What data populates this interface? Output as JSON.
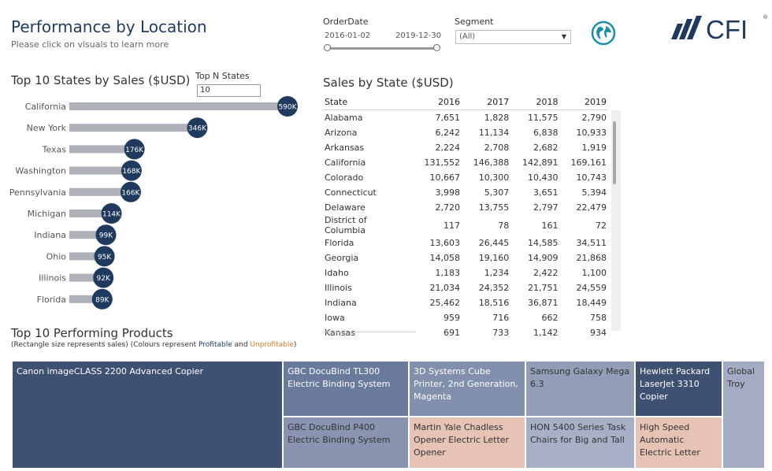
{
  "header": {
    "title": "Performance by Location",
    "subtitle": "Please click on visuals to learn more",
    "logo_text": "CFI"
  },
  "filters": {
    "order_date": {
      "label": "OrderDate",
      "start": "2016-01-02",
      "end": "2019-12-30"
    },
    "segment": {
      "label": "Segment",
      "value": "(All)"
    },
    "top_n": {
      "label": "Top N States",
      "value": "10"
    }
  },
  "colors": {
    "primary": "#1f3a5f",
    "bar_gray": "#aeb1b8",
    "profitable_light": "#a4adc1",
    "unprofitable": "#e6c3b5",
    "accent_orange": "#e07b28"
  },
  "chart_data": {
    "type": "bar",
    "title": "Top 10 States by Sales ($USD)",
    "orientation": "horizontal",
    "categories": [
      "California",
      "New York",
      "Texas",
      "Washington",
      "Pennsylvania",
      "Michigan",
      "Indiana",
      "Ohio",
      "Illinois",
      "Florida"
    ],
    "values": [
      590000,
      346000,
      176000,
      168000,
      166000,
      114000,
      99000,
      95000,
      92000,
      89000
    ],
    "labels": [
      "590K",
      "346K",
      "176K",
      "168K",
      "166K",
      "114K",
      "99K",
      "95K",
      "92K",
      "89K"
    ]
  },
  "sales_table": {
    "title": "Sales by State ($USD)",
    "columns": [
      "State",
      "2016",
      "2017",
      "2018",
      "2019"
    ],
    "rows": [
      [
        "Alabama",
        "7,651",
        "1,828",
        "11,575",
        "2,790"
      ],
      [
        "Arizona",
        "6,242",
        "11,134",
        "6,838",
        "10,933"
      ],
      [
        "Arkansas",
        "2,224",
        "2,708",
        "2,682",
        "1,919"
      ],
      [
        "California",
        "131,552",
        "146,388",
        "142,891",
        "169,161"
      ],
      [
        "Colorado",
        "10,667",
        "10,300",
        "10,430",
        "10,743"
      ],
      [
        "Connecticut",
        "3,998",
        "5,307",
        "3,651",
        "5,394"
      ],
      [
        "Delaware",
        "2,720",
        "13,755",
        "2,797",
        "22,479"
      ],
      [
        "District of Columbia",
        "117",
        "78",
        "161",
        "72"
      ],
      [
        "Florida",
        "13,603",
        "26,445",
        "14,585",
        "34,511"
      ],
      [
        "Georgia",
        "14,058",
        "19,160",
        "14,909",
        "21,868"
      ],
      [
        "Idaho",
        "1,183",
        "1,234",
        "2,422",
        "1,100"
      ],
      [
        "Illinois",
        "21,034",
        "24,352",
        "21,751",
        "24,559"
      ],
      [
        "Indiana",
        "25,462",
        "18,516",
        "36,871",
        "18,449"
      ],
      [
        "Iowa",
        "959",
        "716",
        "662",
        "758"
      ],
      [
        "Kansas",
        "691",
        "733",
        "1,142",
        "934"
      ]
    ]
  },
  "treemap": {
    "title": "Top 10 Performing Products",
    "caption_prefix": "(Rectangle size represents sales) (Colours represent ",
    "caption_profitable": "Profitable",
    "caption_and": " and ",
    "caption_unprofitable": "Unprofitable",
    "caption_suffix": ")",
    "tiles": [
      {
        "name": "Canon imageCLASS 2200 Advanced Copier",
        "color": "#3f5173",
        "light": false
      },
      {
        "name": "GBC DocuBind TL300 Electric Binding System",
        "color": "#6a7a9c",
        "light": false
      },
      {
        "name": "GBC DocuBind P400 Electric Binding System",
        "color": "#8894b0",
        "light": true
      },
      {
        "name": "3D Systems Cube Printer, 2nd Generation, Magenta",
        "color": "#8090ad",
        "light": false
      },
      {
        "name": "Martin Yale Chadless Opener Electric Letter Opener",
        "color": "#e6c3b5",
        "light": true
      },
      {
        "name": "Samsung Galaxy Mega 6.3",
        "color": "#929db7",
        "light": true
      },
      {
        "name": "HON 5400 Series Task Chairs for Big and Tall",
        "color": "#a7b0c5",
        "light": true
      },
      {
        "name": "Hewlett Packard LaserJet 3310 Copier",
        "color": "#3f5173",
        "light": false
      },
      {
        "name": "High Speed Automatic Electric Letter",
        "color": "#e6c3b5",
        "light": true
      },
      {
        "name": "Global Troy",
        "color": "#a3acc3",
        "light": true
      }
    ]
  }
}
